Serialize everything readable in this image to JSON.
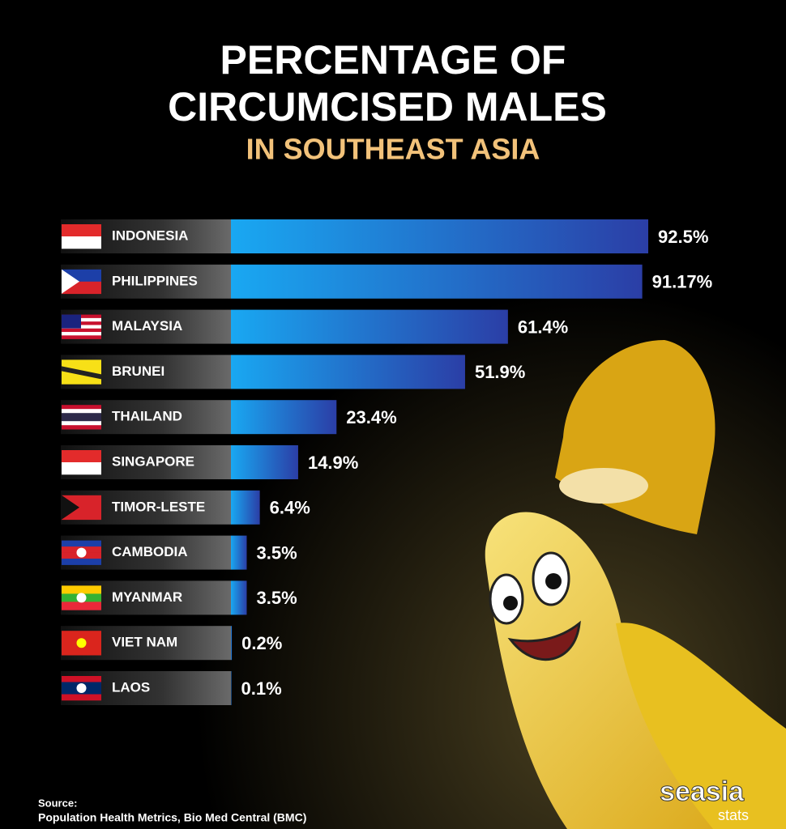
{
  "chart_data": {
    "type": "bar",
    "orientation": "horizontal",
    "title": [
      "PERCENTAGE OF",
      "CIRCUMCISED MALES"
    ],
    "subtitle": "IN SOUTHEAST ASIA",
    "categories": [
      "INDONESIA",
      "PHILIPPINES",
      "MALAYSIA",
      "BRUNEI",
      "THAILAND",
      "SINGAPORE",
      "TIMOR-LESTE",
      "CAMBODIA",
      "MYANMAR",
      "VIET NAM",
      "LAOS"
    ],
    "values": [
      92.5,
      91.17,
      61.4,
      51.9,
      23.4,
      14.9,
      6.4,
      3.5,
      3.5,
      0.2,
      0.1
    ],
    "value_labels": [
      "92.5%",
      "91.17%",
      "61.4%",
      "51.9%",
      "23.4%",
      "14.9%",
      "6.4%",
      "3.5%",
      "3.5%",
      "0.2%",
      "0.1%"
    ],
    "color": "#1f6fd6",
    "source": {
      "label": "Source:",
      "text": "Population Health Metrics, Bio Med Central (BMC)"
    },
    "logo": [
      "seasia",
      "stats"
    ]
  }
}
